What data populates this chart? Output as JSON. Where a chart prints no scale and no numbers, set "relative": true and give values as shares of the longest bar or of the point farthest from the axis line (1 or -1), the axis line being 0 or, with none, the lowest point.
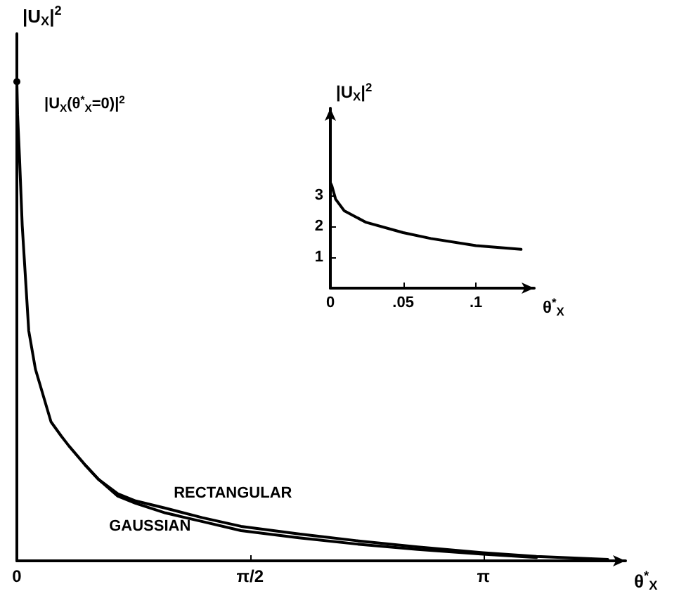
{
  "chart_data": [
    {
      "type": "line",
      "relative": true,
      "xlabel": "θ$^{*}$$_{X}$",
      "ylabel": "|U$_{X}$|$^{2}$",
      "xlim": [
        0,
        4.1
      ],
      "xticks": [
        {
          "value": 0,
          "label": "0"
        },
        {
          "value": 1.5708,
          "label": "π/2"
        },
        {
          "value": 3.1416,
          "label": "π"
        }
      ],
      "tick_labels": "x",
      "grid": false,
      "legend": false,
      "marker": "none",
      "line_style": "solid",
      "x": [
        0,
        0.005,
        0.018,
        0.036,
        0.08,
        0.125,
        0.23,
        0.3,
        0.35,
        0.46,
        0.55,
        0.68,
        0.8,
        1.0,
        1.25,
        1.51,
        1.9,
        2.29,
        2.7,
        3.14,
        3.5,
        3.98
      ],
      "series": [
        {
          "name": "RECTANGULAR",
          "color": "#000000",
          "values": [
            1,
            0.93,
            0.84,
            0.7,
            0.48,
            0.4,
            0.29,
            0.26,
            0.24,
            0.2,
            0.17,
            0.14,
            0.125,
            0.11,
            0.09,
            0.072,
            0.056,
            0.042,
            0.029,
            0.017,
            0.009,
            0.003
          ]
        },
        {
          "name": "GAUSSIAN",
          "color": "#000000",
          "values": [
            null,
            null,
            null,
            null,
            null,
            null,
            null,
            null,
            null,
            0.2,
            0.17,
            0.135,
            0.12,
            0.1,
            0.082,
            0.063,
            0.048,
            0.035,
            0.024,
            0.014,
            0.007,
            null
          ]
        }
      ],
      "annotations": [
        {
          "text": "|U$_{X}$(θ$^{*}$$_{X}$=0)|$^{2}$",
          "x": 0,
          "y": 1
        }
      ]
    },
    {
      "type": "line",
      "xlabel": "θ$^{*}$$_{X}$",
      "ylabel": "|U$_{X}$|$^{2}$",
      "xlim": [
        0,
        0.14
      ],
      "ylim": [
        0,
        5.8
      ],
      "xticks": [
        {
          "value": 0,
          "label": "0"
        },
        {
          "value": 0.05,
          "label": ".05"
        },
        {
          "value": 0.1,
          "label": ".1"
        }
      ],
      "yticks": [
        1,
        2,
        3
      ],
      "grid": false,
      "legend": false,
      "marker": "none",
      "line_style": "solid",
      "x": [
        0,
        0.001,
        0.0036,
        0.0096,
        0.0246,
        0.05,
        0.069,
        0.1,
        0.131
      ],
      "series": [
        {
          "color": "#000000",
          "values": [
            3.4,
            3.3,
            2.87,
            2.49,
            2.12,
            1.79,
            1.6,
            1.37,
            1.25
          ]
        }
      ]
    }
  ]
}
